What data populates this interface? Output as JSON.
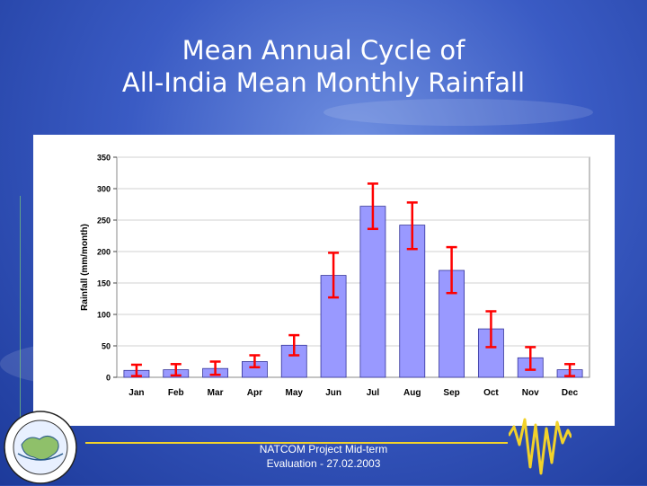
{
  "slide": {
    "title_line1": "Mean Annual Cycle of",
    "title_line2": "All-India Mean Monthly Rainfall",
    "footer_line1": "NATCOM Project Mid-term",
    "footer_line2": "Evaluation - 27.02.2003",
    "colors": {
      "background": "#3a5bc4",
      "title_text": "#ffffff",
      "accent_line": "#f2d22a"
    },
    "icons": [
      "logo-emblem-icon",
      "waveform-icon"
    ]
  },
  "chart_data": {
    "type": "bar",
    "title": "",
    "xlabel": "",
    "ylabel": "Rainfall (mm/month)",
    "ylim": [
      0,
      350
    ],
    "yticks": [
      0,
      50,
      100,
      150,
      200,
      250,
      300,
      350
    ],
    "categories": [
      "Jan",
      "Feb",
      "Mar",
      "Apr",
      "May",
      "Jun",
      "Jul",
      "Aug",
      "Sep",
      "Oct",
      "Nov",
      "Dec"
    ],
    "values": [
      11,
      12,
      14,
      25,
      51,
      162,
      272,
      242,
      170,
      77,
      31,
      12
    ],
    "error_low": [
      2,
      3,
      4,
      16,
      35,
      127,
      236,
      204,
      134,
      48,
      12,
      2
    ],
    "error_high": [
      20,
      21,
      25,
      35,
      67,
      198,
      308,
      278,
      207,
      105,
      48,
      21
    ],
    "grid": true,
    "colors": {
      "bar_fill": "#9999ff",
      "bar_stroke": "#333399",
      "error_bar": "#ff0000",
      "grid": "#d0d0d0",
      "plot_background": "#ffffff"
    }
  }
}
